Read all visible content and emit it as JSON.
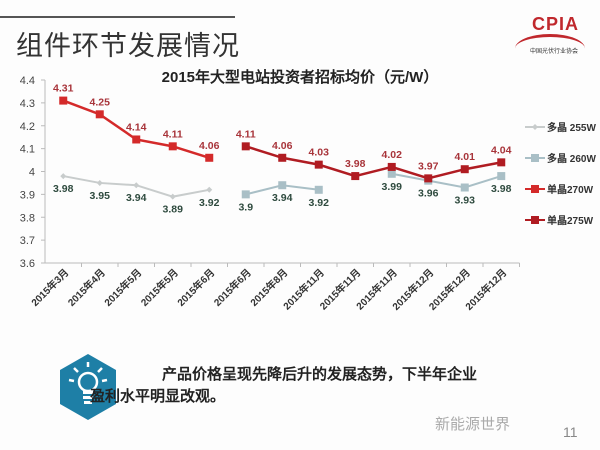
{
  "header": {
    "title": "组件环节发展情况",
    "logo_text": "CPIA",
    "logo_subtitle": "中国光伏行业协会"
  },
  "chart_data": {
    "type": "line",
    "title": "2015年大型电站投资者招标均价（元/W）",
    "categories": [
      "2015年3月",
      "2015年4月",
      "2015年5月",
      "2015年5月",
      "2015年6月",
      "2015年6月",
      "2015年8月",
      "2015年11月",
      "2015年11月",
      "2015年11月",
      "2015年12月",
      "2015年12月",
      "2015年12月"
    ],
    "ylim": [
      3.6,
      4.4
    ],
    "yticks": [
      "3.6",
      "3.7",
      "3.8",
      "3.9",
      "4",
      "4.1",
      "4.2",
      "4.3",
      "4.4"
    ],
    "legend_position": "right",
    "series": [
      {
        "name": "多晶 255W",
        "color": "#c8cccc",
        "label_color": "#2e4a3e",
        "label_pos": "below",
        "marker": "diamond",
        "values": [
          3.98,
          3.95,
          3.94,
          3.89,
          3.92,
          null,
          null,
          null,
          null,
          null,
          null,
          null,
          null
        ]
      },
      {
        "name": "多晶 260W",
        "color": "#a9bfc6",
        "label_color": "#2e4a3e",
        "label_pos": "below",
        "marker": "square",
        "values": [
          null,
          null,
          null,
          null,
          null,
          3.9,
          3.94,
          3.92,
          null,
          3.99,
          3.96,
          3.93,
          3.98
        ]
      },
      {
        "name": "单晶270W",
        "color": "#d42a2a",
        "label_color": "#a8343a",
        "label_pos": "above",
        "marker": "square",
        "values": [
          4.31,
          4.25,
          4.14,
          4.11,
          4.06,
          null,
          null,
          null,
          null,
          null,
          null,
          null,
          null
        ]
      },
      {
        "name": "单晶275W",
        "color": "#b01c22",
        "label_color": "#a8343a",
        "label_pos": "above",
        "marker": "square",
        "values": [
          null,
          null,
          null,
          null,
          null,
          4.11,
          4.06,
          4.03,
          3.98,
          4.02,
          3.97,
          4.01,
          4.04
        ]
      }
    ]
  },
  "tip": {
    "line1": "产品价格呈现先降后升的发展态势，下半年企业",
    "line2": "盈利水平明显改观。",
    "icon": "lightbulb-icon",
    "icon_color": "#1e7fa6"
  },
  "footer": {
    "watermark": "新能源世界",
    "page_number": "11"
  }
}
